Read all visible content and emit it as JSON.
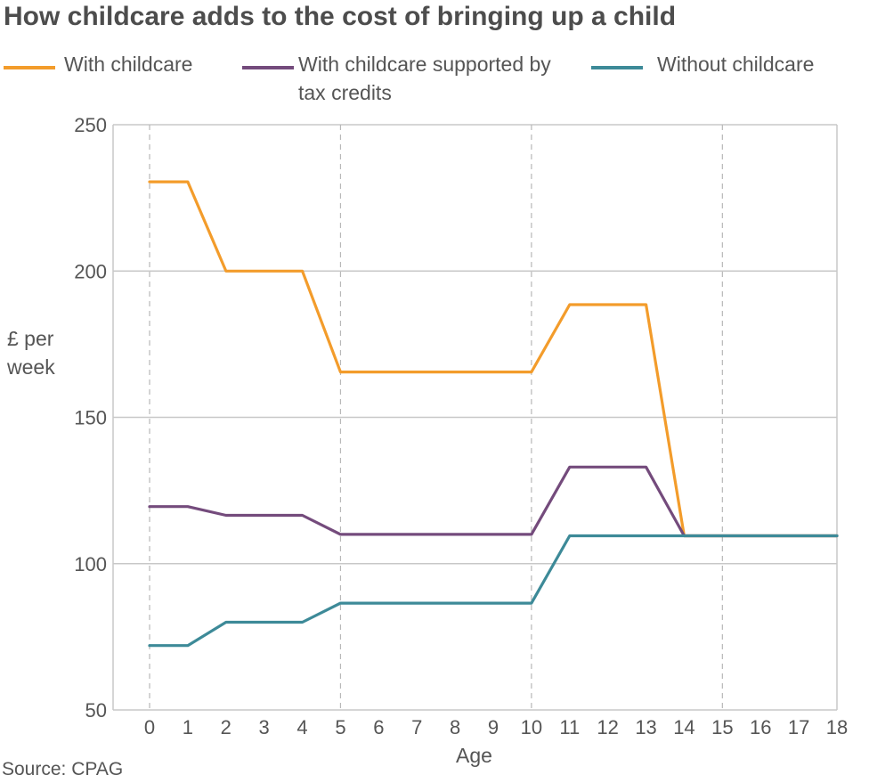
{
  "chart_data": {
    "type": "line",
    "title": "How childcare adds to the cost of bringing up a child",
    "xlabel": "Age",
    "ylabel": "£ per week",
    "x": [
      0,
      1,
      2,
      3,
      4,
      5,
      6,
      7,
      8,
      9,
      10,
      11,
      12,
      13,
      14,
      15,
      16,
      17,
      18
    ],
    "xlim": [
      0,
      18
    ],
    "ylim": [
      50,
      250
    ],
    "yticks": [
      50,
      100,
      150,
      200,
      250
    ],
    "xticks": [
      "0",
      "1",
      "2",
      "3",
      "4",
      "5",
      "6",
      "7",
      "8",
      "9",
      "10",
      "11",
      "12",
      "13",
      "14",
      "15",
      "16",
      "17",
      "18"
    ],
    "grid": "horizontal solid at y ticks, vertical dashed at ages 0, 5, 10, 15",
    "legend_position": "top",
    "series": [
      {
        "name": "With childcare",
        "color": "#f39c2b",
        "values": [
          230.5,
          230.5,
          200,
          200,
          200,
          165.5,
          165.5,
          165.5,
          165.5,
          165.5,
          165.5,
          188.5,
          188.5,
          188.5,
          109.5,
          109.5,
          109.5,
          109.5,
          109.5
        ]
      },
      {
        "name": "With childcare supported by tax credits",
        "color": "#744b7c",
        "values": [
          119.5,
          119.5,
          116.5,
          116.5,
          116.5,
          110,
          110,
          110,
          110,
          110,
          110,
          133,
          133,
          133,
          109.5,
          109.5,
          109.5,
          109.5,
          109.5
        ]
      },
      {
        "name": "Without childcare",
        "color": "#3d8a98",
        "values": [
          72,
          72,
          80,
          80,
          80,
          86.5,
          86.5,
          86.5,
          86.5,
          86.5,
          86.5,
          109.5,
          109.5,
          109.5,
          109.5,
          109.5,
          109.5,
          109.5,
          109.5
        ]
      }
    ],
    "source": "Source: CPAG"
  },
  "legend": [
    {
      "label": "With childcare",
      "color": "#f39c2b"
    },
    {
      "label": "With childcare supported by tax credits",
      "color": "#744b7c"
    },
    {
      "label": "Without childcare",
      "color": "#3d8a98"
    }
  ]
}
